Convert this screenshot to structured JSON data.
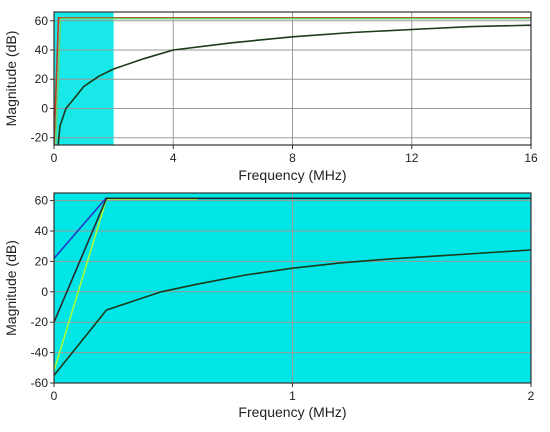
{
  "chart_data": [
    {
      "type": "line",
      "title": "",
      "xlabel": "Frequency (MHz)",
      "ylabel": "Magnitude (dB)",
      "xlim": [
        0,
        16
      ],
      "ylim": [
        -25,
        66
      ],
      "xticks": [
        0,
        4,
        8,
        12,
        16
      ],
      "yticks": [
        -20,
        0,
        20,
        40,
        60
      ],
      "grid": true,
      "highlight": {
        "x": [
          0,
          2
        ],
        "color": "#00e5e5"
      },
      "series": [
        {
          "color": "#c0392b",
          "x": [
            0,
            0.15,
            16
          ],
          "y": [
            -25,
            62,
            62
          ]
        },
        {
          "color": "#6ad36a",
          "x": [
            0,
            0.22,
            2,
            16
          ],
          "y": [
            -52,
            61.5,
            61.5,
            61.5
          ]
        },
        {
          "color": "#1a3a1a",
          "x": [
            0,
            0.2,
            0.4,
            0.6,
            1,
            1.5,
            2,
            3,
            4,
            6,
            8,
            10,
            12,
            14,
            16
          ],
          "y": [
            -55,
            -12,
            0,
            5,
            15,
            22,
            27,
            34,
            40,
            45,
            49,
            52,
            54,
            56,
            57
          ]
        }
      ]
    },
    {
      "type": "line",
      "title": "",
      "xlabel": "Frequency (MHz)",
      "ylabel": "Magnitude (dB)",
      "xlim": [
        0,
        2
      ],
      "ylim": [
        -60,
        65
      ],
      "xticks": [
        0,
        1,
        2
      ],
      "yticks": [
        -60,
        -40,
        -20,
        0,
        20,
        40,
        60
      ],
      "grid": true,
      "background": "#00e5e5",
      "series": [
        {
          "color": "#2438c8",
          "x": [
            0,
            0.22
          ],
          "y": [
            22,
            62
          ]
        },
        {
          "color": "#a8ff3c",
          "x": [
            0,
            0.22,
            0.6
          ],
          "y": [
            -52,
            61,
            61
          ]
        },
        {
          "color": "#2a2a2a",
          "x": [
            0,
            0.22,
            2
          ],
          "y": [
            -20,
            61.5,
            61.5
          ]
        },
        {
          "color": "#1a3a1a",
          "x": [
            0,
            0.22,
            0.45,
            0.6,
            0.8,
            1,
            1.2,
            1.4,
            1.6,
            1.8,
            2
          ],
          "y": [
            -55,
            -12,
            0,
            5,
            11,
            15.5,
            19,
            21.5,
            23.5,
            25.5,
            27.5
          ]
        }
      ]
    }
  ]
}
